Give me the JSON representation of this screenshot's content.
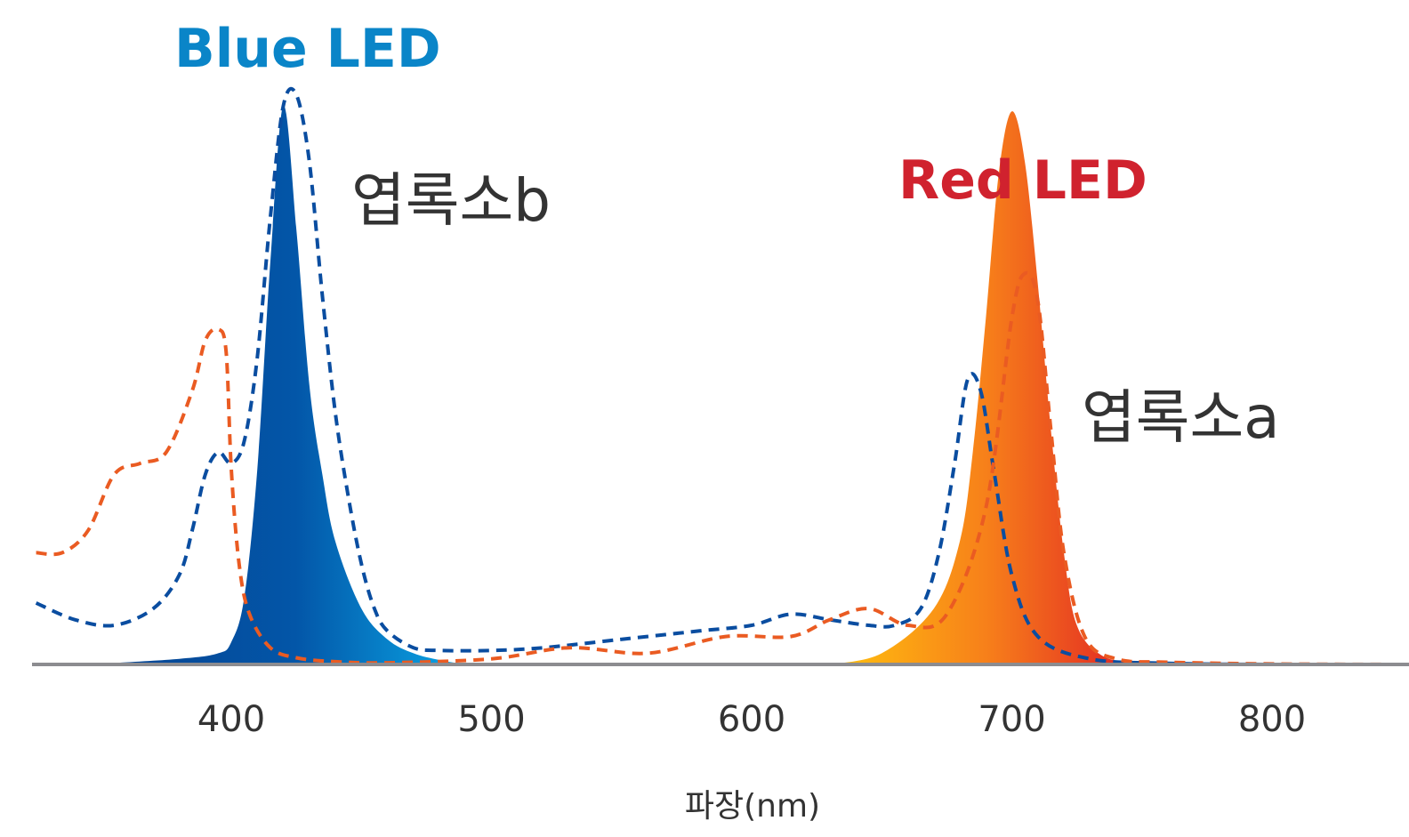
{
  "chart_data": {
    "type": "area",
    "xlabel": "파장(nm)",
    "ylabel": "",
    "xlim": [
      325,
      850
    ],
    "ylim": [
      0,
      1
    ],
    "x_ticks": [
      400,
      500,
      600,
      700,
      800
    ],
    "x_tick_labels": [
      "400",
      "500",
      "600",
      "700",
      "800"
    ],
    "grid": false,
    "colors": {
      "blue_led_title": "#0a85c8",
      "red_led_title": "#d0222e",
      "blue_led_fill_start": "#05418f",
      "blue_led_fill_end": "#0aa7e6",
      "red_led_fill_start": "#ffc20e",
      "red_led_fill_mid": "#f7801a",
      "red_led_fill_end": "#e01e25",
      "chlorophyll_b_line": "#0a4da0",
      "chlorophyll_a_line": "#ea5b22",
      "axis": "#8c8c90"
    },
    "series": [
      {
        "name": "Blue LED",
        "style": "filled",
        "x": [
          345,
          380,
          395,
          400,
          405,
          410,
          415,
          420,
          425,
          430,
          435,
          440,
          450,
          460,
          470,
          480,
          490
        ],
        "values": [
          0.0,
          0.01,
          0.02,
          0.04,
          0.12,
          0.35,
          0.72,
          1.0,
          0.78,
          0.5,
          0.34,
          0.22,
          0.1,
          0.045,
          0.02,
          0.008,
          0.0
        ]
      },
      {
        "name": "Red LED",
        "style": "filled",
        "x": [
          630,
          650,
          670,
          680,
          685,
          690,
          695,
          700,
          705,
          710,
          715,
          720,
          725,
          735,
          750
        ],
        "values": [
          0.0,
          0.02,
          0.1,
          0.22,
          0.38,
          0.62,
          0.88,
          0.99,
          0.9,
          0.68,
          0.42,
          0.2,
          0.07,
          0.015,
          0.0
        ]
      },
      {
        "name": "엽록소b",
        "style": "dashed",
        "x": [
          325,
          340,
          355,
          370,
          380,
          385,
          390,
          395,
          400,
          405,
          410,
          415,
          420,
          425,
          430,
          435,
          440,
          445,
          450,
          455,
          460,
          470,
          480,
          500,
          520,
          550,
          580,
          600,
          615,
          630,
          645,
          655,
          665,
          672,
          678,
          683,
          688,
          693,
          700,
          710,
          730,
          760,
          800,
          850
        ],
        "values": [
          0.11,
          0.08,
          0.07,
          0.1,
          0.16,
          0.24,
          0.34,
          0.38,
          0.36,
          0.4,
          0.55,
          0.8,
          1.0,
          1.02,
          0.9,
          0.66,
          0.45,
          0.3,
          0.18,
          0.1,
          0.06,
          0.03,
          0.025,
          0.025,
          0.03,
          0.045,
          0.06,
          0.07,
          0.09,
          0.08,
          0.07,
          0.07,
          0.1,
          0.2,
          0.36,
          0.51,
          0.49,
          0.35,
          0.16,
          0.05,
          0.01,
          0.002,
          0.0,
          0.0
        ]
      },
      {
        "name": "엽록소a",
        "style": "dashed",
        "x": [
          325,
          335,
          345,
          355,
          365,
          375,
          385,
          390,
          395,
          398,
          400,
          403,
          407,
          415,
          425,
          440,
          460,
          500,
          530,
          560,
          590,
          615,
          630,
          645,
          660,
          675,
          690,
          700,
          705,
          710,
          715,
          720,
          728,
          740,
          760,
          800,
          850
        ],
        "values": [
          0.2,
          0.2,
          0.24,
          0.34,
          0.36,
          0.38,
          0.49,
          0.58,
          0.6,
          0.56,
          0.35,
          0.18,
          0.09,
          0.03,
          0.012,
          0.005,
          0.003,
          0.01,
          0.03,
          0.02,
          0.05,
          0.05,
          0.08,
          0.1,
          0.07,
          0.09,
          0.28,
          0.62,
          0.7,
          0.65,
          0.42,
          0.2,
          0.05,
          0.01,
          0.004,
          0.001,
          0.0
        ]
      }
    ],
    "annotations": {
      "blue_led": "Blue LED",
      "red_led": "Red LED",
      "chlorophyll_b": "엽록소b",
      "chlorophyll_a": "엽록소a"
    }
  }
}
